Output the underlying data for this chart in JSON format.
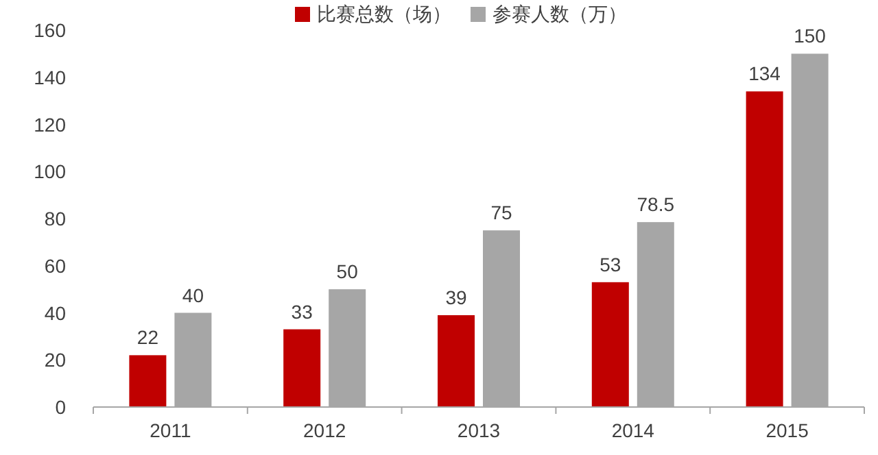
{
  "chart_data": {
    "type": "bar",
    "categories": [
      "2011",
      "2012",
      "2013",
      "2014",
      "2015"
    ],
    "series": [
      {
        "name": "比赛总数（场）",
        "color": "#c00000",
        "values": [
          22,
          33,
          39,
          53,
          134
        ]
      },
      {
        "name": "参赛人数（万）",
        "color": "#a6a6a6",
        "values": [
          40,
          50,
          75,
          78.5,
          150
        ]
      }
    ],
    "ylim": [
      0,
      160
    ],
    "yticks": [
      0,
      20,
      40,
      60,
      80,
      100,
      120,
      140,
      160
    ],
    "data_labels": true,
    "legend": "top",
    "grid": false
  }
}
